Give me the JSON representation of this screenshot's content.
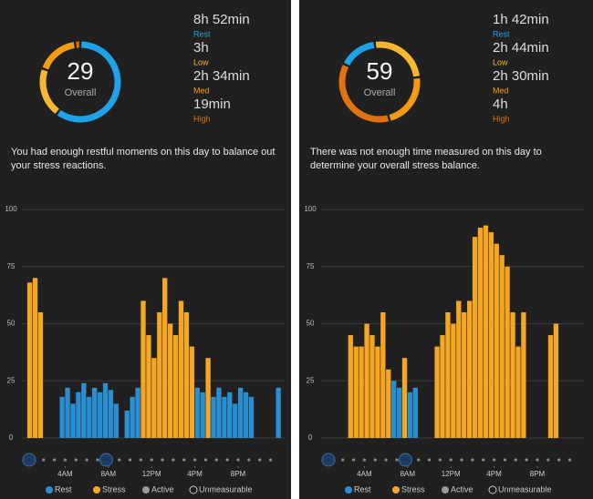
{
  "chart_data": [
    {
      "type": "bar",
      "score": 29,
      "score_label": "Overall",
      "breakdown": [
        {
          "duration": "8h 52min",
          "label": "Rest",
          "color": "#1fa3e8"
        },
        {
          "duration": "3h",
          "label": "Low",
          "color": "#f7b733"
        },
        {
          "duration": "2h 34min",
          "label": "Med",
          "color": "#f39c12"
        },
        {
          "duration": "19min",
          "label": "High",
          "color": "#e0730f"
        }
      ],
      "message": "You had enough restful moments on this day to balance out your stress reactions.",
      "x": [
        0,
        0.5,
        1,
        1.5,
        2,
        2.5,
        3,
        3.5,
        4,
        4.5,
        5,
        5.5,
        6,
        6.5,
        7,
        7.5,
        8,
        8.5,
        9,
        9.5,
        10,
        10.5,
        11,
        11.5,
        12,
        12.5,
        13,
        13.5,
        14,
        14.5,
        15,
        15.5,
        16,
        16.5,
        17,
        17.5,
        18,
        18.5,
        19,
        19.5,
        20,
        20.5,
        21,
        21.5,
        22,
        22.5,
        23,
        23.5
      ],
      "xticks": [
        {
          "value": 4,
          "label": "4AM"
        },
        {
          "value": 8,
          "label": "8AM"
        },
        {
          "value": 12,
          "label": "12PM"
        },
        {
          "value": 16,
          "label": "4PM"
        },
        {
          "value": 20,
          "label": "8PM"
        }
      ],
      "ylim": [
        0,
        100
      ],
      "yticks": [
        0,
        25,
        50,
        75,
        100
      ],
      "grid": true,
      "series": [
        {
          "name": "Rest",
          "color": "#2a8fd0",
          "values": [
            null,
            null,
            null,
            null,
            null,
            null,
            null,
            18,
            22,
            15,
            20,
            24,
            18,
            22,
            20,
            24,
            21,
            15,
            null,
            12,
            18,
            22,
            null,
            null,
            null,
            null,
            null,
            null,
            null,
            null,
            null,
            null,
            22,
            20,
            null,
            18,
            22,
            18,
            20,
            15,
            22,
            20,
            18,
            null,
            null,
            null,
            null,
            22
          ]
        },
        {
          "name": "Stress",
          "color": "#f5a623",
          "values": [
            null,
            68,
            70,
            55,
            null,
            null,
            null,
            null,
            null,
            null,
            null,
            null,
            null,
            null,
            null,
            null,
            null,
            null,
            null,
            null,
            null,
            null,
            60,
            45,
            35,
            55,
            70,
            50,
            45,
            60,
            55,
            40,
            null,
            null,
            35,
            null,
            null,
            null,
            null,
            null,
            null,
            null,
            null,
            null,
            null,
            null,
            null,
            null
          ]
        },
        {
          "name": "Active",
          "color": "#9a9a9a",
          "values": [
            null,
            null,
            null,
            null,
            null,
            null,
            null,
            null,
            null,
            null,
            null,
            null,
            null,
            null,
            null,
            null,
            null,
            null,
            null,
            null,
            null,
            null,
            null,
            null,
            null,
            null,
            null,
            null,
            null,
            null,
            null,
            null,
            null,
            null,
            null,
            null,
            null,
            null,
            null,
            null,
            null,
            null,
            null,
            null,
            null,
            null,
            null,
            null
          ]
        },
        {
          "name": "Unmeasurable",
          "color": "none",
          "values": [
            null,
            null,
            null,
            null,
            null,
            null,
            null,
            null,
            null,
            null,
            null,
            null,
            null,
            null,
            null,
            null,
            null,
            null,
            null,
            null,
            null,
            null,
            null,
            null,
            null,
            null,
            null,
            null,
            null,
            null,
            null,
            null,
            null,
            null,
            null,
            null,
            null,
            null,
            null,
            null,
            null,
            null,
            null,
            null,
            null,
            null,
            null,
            null
          ]
        }
      ]
    },
    {
      "type": "bar",
      "score": 59,
      "score_label": "Overall",
      "breakdown": [
        {
          "duration": "1h 42min",
          "label": "Rest",
          "color": "#1fa3e8"
        },
        {
          "duration": "2h 44min",
          "label": "Low",
          "color": "#f7b733"
        },
        {
          "duration": "2h 30min",
          "label": "Med",
          "color": "#f39c12"
        },
        {
          "duration": "4h",
          "label": "High",
          "color": "#e0730f"
        }
      ],
      "message": "There was not enough time measured on this day to determine your overall stress balance.",
      "x": [
        0,
        0.5,
        1,
        1.5,
        2,
        2.5,
        3,
        3.5,
        4,
        4.5,
        5,
        5.5,
        6,
        6.5,
        7,
        7.5,
        8,
        8.5,
        9,
        9.5,
        10,
        10.5,
        11,
        11.5,
        12,
        12.5,
        13,
        13.5,
        14,
        14.5,
        15,
        15.5,
        16,
        16.5,
        17,
        17.5,
        18,
        18.5,
        19,
        19.5,
        20,
        20.5,
        21,
        21.5,
        22,
        22.5,
        23,
        23.5
      ],
      "xticks": [
        {
          "value": 4,
          "label": "4AM"
        },
        {
          "value": 8,
          "label": "8AM"
        },
        {
          "value": 12,
          "label": "12PM"
        },
        {
          "value": 16,
          "label": "4PM"
        },
        {
          "value": 20,
          "label": "8PM"
        }
      ],
      "ylim": [
        0,
        100
      ],
      "yticks": [
        0,
        25,
        50,
        75,
        100
      ],
      "grid": true,
      "series": [
        {
          "name": "Rest",
          "color": "#2a8fd0",
          "values": [
            null,
            null,
            null,
            null,
            null,
            null,
            null,
            null,
            null,
            null,
            null,
            null,
            null,
            25,
            22,
            null,
            20,
            22,
            null,
            null,
            null,
            null,
            null,
            null,
            null,
            null,
            null,
            null,
            null,
            null,
            null,
            null,
            null,
            null,
            null,
            null,
            null,
            null,
            null,
            null,
            null,
            null,
            null,
            null,
            null,
            null,
            null,
            null
          ]
        },
        {
          "name": "Stress",
          "color": "#f5a623",
          "values": [
            null,
            null,
            null,
            null,
            null,
            45,
            40,
            40,
            50,
            45,
            40,
            55,
            30,
            null,
            null,
            35,
            null,
            null,
            null,
            null,
            null,
            40,
            45,
            55,
            50,
            60,
            55,
            60,
            88,
            92,
            93,
            90,
            85,
            80,
            75,
            55,
            40,
            55,
            null,
            null,
            null,
            null,
            45,
            50,
            null,
            null,
            null,
            null
          ]
        },
        {
          "name": "Active",
          "color": "#9a9a9a",
          "values": [
            null,
            null,
            null,
            null,
            null,
            null,
            null,
            null,
            null,
            null,
            null,
            null,
            null,
            null,
            null,
            null,
            null,
            null,
            null,
            null,
            null,
            null,
            null,
            null,
            null,
            null,
            null,
            null,
            null,
            null,
            null,
            null,
            null,
            null,
            null,
            null,
            null,
            null,
            null,
            null,
            null,
            null,
            null,
            null,
            null,
            null,
            null,
            null
          ]
        },
        {
          "name": "Unmeasurable",
          "color": "none",
          "values": [
            null,
            null,
            null,
            null,
            null,
            null,
            null,
            null,
            null,
            null,
            null,
            null,
            null,
            null,
            null,
            null,
            null,
            null,
            null,
            null,
            null,
            null,
            null,
            null,
            null,
            null,
            null,
            null,
            null,
            null,
            null,
            null,
            null,
            null,
            null,
            null,
            null,
            null,
            null,
            null,
            null,
            null,
            null,
            null,
            null,
            null,
            null,
            null
          ]
        }
      ]
    }
  ]
}
